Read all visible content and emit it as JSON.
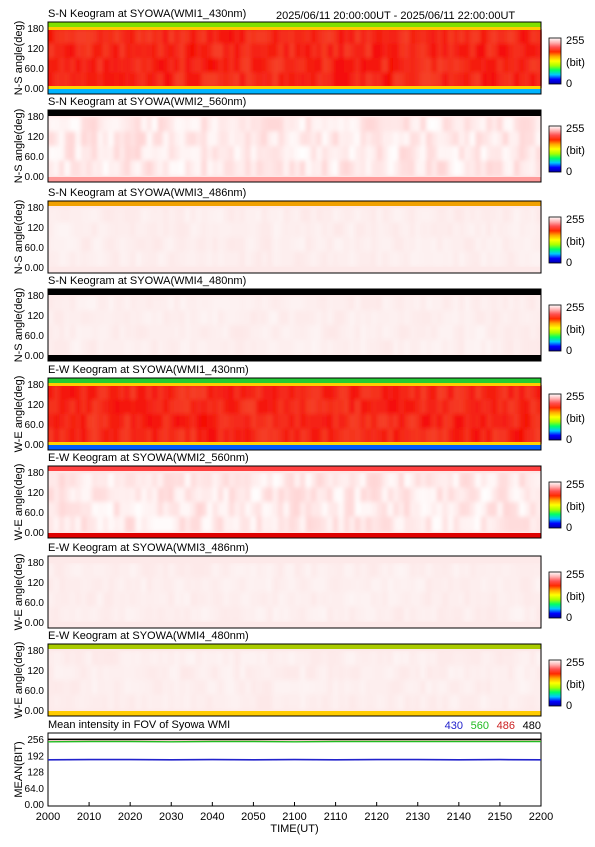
{
  "header": {
    "date_range": "2025/06/11 20:00:00UT - 2025/06/11 22:00:00UT"
  },
  "colorbar": {
    "max_label": "255",
    "unit_label": "(bit)",
    "min_label": "0",
    "stops": [
      "#0000aa",
      "#0000ff",
      "#00c8ff",
      "#00ff66",
      "#aaff00",
      "#ffff00",
      "#ffaa00",
      "#ff2a00",
      "#ff5050",
      "#ffb3b3",
      "#ffffff"
    ]
  },
  "keograms": [
    {
      "title": "S-N Keogram at SYOWA(WMI1_430nm)",
      "ylabel": "N-S angle(deg)",
      "yticks": [
        "180",
        "120",
        "60.0",
        "0.00"
      ],
      "style": "red",
      "top_band": "#7fe000",
      "bottom_band": "#00b4ff",
      "black_cap": false
    },
    {
      "title": "S-N Keogram at SYOWA(WMI2_560nm)",
      "ylabel": "N-S angle(deg)",
      "yticks": [
        "180",
        "120",
        "60.0",
        "0.00"
      ],
      "style": "white",
      "top_band": "#000000",
      "bottom_band": "#ff9a9a",
      "black_cap": true
    },
    {
      "title": "S-N Keogram at SYOWA(WMI3_486nm)",
      "ylabel": "N-S angle(deg)",
      "yticks": [
        "180",
        "120",
        "60.0",
        "0.00"
      ],
      "style": "pale",
      "top_band": "#f0a000",
      "bottom_band": "#fde9e9",
      "black_cap": false
    },
    {
      "title": "S-N Keogram at SYOWA(WMI4_480nm)",
      "ylabel": "N-S angle(deg)",
      "yticks": [
        "180",
        "120",
        "60.0",
        "0.00"
      ],
      "style": "pale",
      "top_band": "#000000",
      "bottom_band": "#000000",
      "black_cap": true
    },
    {
      "title": "E-W Keogram at SYOWA(WMI1_430nm)",
      "ylabel": "W-E angle(deg)",
      "yticks": [
        "180",
        "120",
        "60.0",
        "0.00"
      ],
      "style": "red",
      "top_band": "#22cc33",
      "bottom_band": "#0060ff",
      "black_cap": false
    },
    {
      "title": "E-W Keogram at SYOWA(WMI2_560nm)",
      "ylabel": "W-E angle(deg)",
      "yticks": [
        "180",
        "120",
        "60.0",
        "0.00"
      ],
      "style": "white",
      "top_band": "#ff4040",
      "bottom_band": "#e00000",
      "black_cap": false
    },
    {
      "title": "E-W Keogram at SYOWA(WMI3_486nm)",
      "ylabel": "W-E angle(deg)",
      "yticks": [
        "180",
        "120",
        "60.0",
        "0.00"
      ],
      "style": "pale",
      "top_band": "#fde9e9",
      "bottom_band": "#fde9e9",
      "black_cap": false
    },
    {
      "title": "E-W Keogram at SYOWA(WMI4_480nm)",
      "ylabel": "W-E angle(deg)",
      "yticks": [
        "180",
        "120",
        "60.0",
        "0.00"
      ],
      "style": "pale",
      "top_band": "#aacc00",
      "bottom_band": "#ffcc00",
      "black_cap": false
    }
  ],
  "mean_panel": {
    "title": "Mean intensity in FOV of Syowa WMI",
    "ylabel": "MEAN(BIT)",
    "yticks": [
      "256",
      "192",
      "128",
      "64.0",
      "0.00"
    ],
    "legend": [
      {
        "label": "430",
        "color": "#2222cc"
      },
      {
        "label": "560",
        "color": "#22bb22"
      },
      {
        "label": "486",
        "color": "#cc2222"
      },
      {
        "label": "480",
        "color": "#000000"
      }
    ]
  },
  "xaxis": {
    "label": "TIME(UT)",
    "ticks": [
      "2000",
      "2010",
      "2020",
      "2030",
      "2040",
      "2050",
      "2100",
      "2110",
      "2120",
      "2130",
      "2140",
      "2150",
      "2200"
    ]
  },
  "chart_data": {
    "type": "line",
    "title": "Mean intensity in FOV of Syowa WMI",
    "xlabel": "TIME(UT)",
    "ylabel": "MEAN(BIT)",
    "x": [
      "2000",
      "2010",
      "2020",
      "2030",
      "2040",
      "2050",
      "2100",
      "2110",
      "2120",
      "2130",
      "2140",
      "2150",
      "2200"
    ],
    "ylim": [
      0,
      256
    ],
    "series": [
      {
        "name": "430",
        "color": "#2222cc",
        "values": [
          174,
          175,
          175,
          174,
          175,
          174,
          175,
          174,
          175,
          175,
          174,
          175,
          174
        ]
      },
      {
        "name": "560",
        "color": "#22bb22",
        "values": [
          245,
          246,
          246,
          245,
          246,
          246,
          245,
          246,
          246,
          246,
          246,
          246,
          246
        ]
      },
      {
        "name": "486",
        "color": "#cc2222",
        "values": [
          254,
          254,
          254,
          254,
          254,
          254,
          254,
          254,
          254,
          254,
          254,
          254,
          254
        ]
      },
      {
        "name": "480",
        "color": "#000000",
        "values": [
          255,
          255,
          255,
          255,
          255,
          255,
          255,
          255,
          255,
          255,
          255,
          255,
          255
        ]
      }
    ]
  }
}
